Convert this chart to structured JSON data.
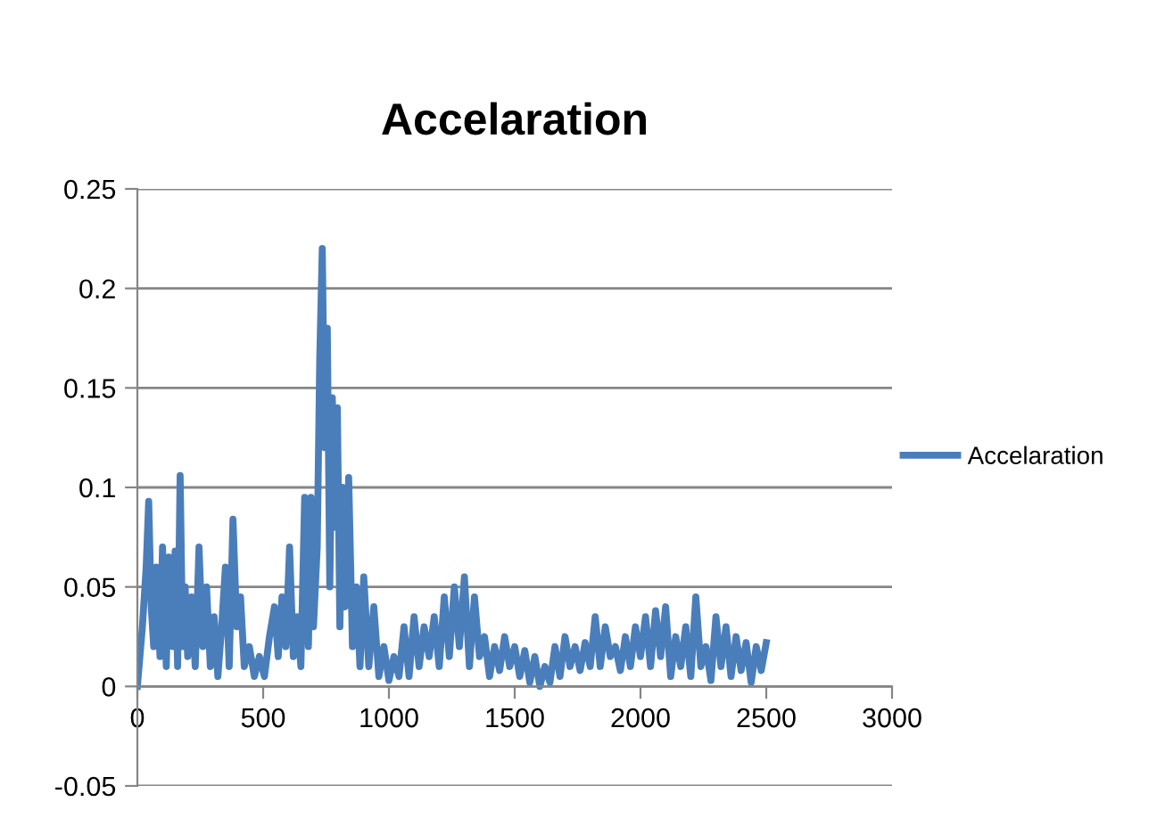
{
  "chart_data": {
    "type": "line",
    "title": "Accelaration",
    "x": [
      0,
      20,
      35,
      45,
      55,
      65,
      75,
      90,
      100,
      115,
      125,
      140,
      150,
      160,
      170,
      180,
      190,
      200,
      215,
      230,
      245,
      260,
      275,
      290,
      305,
      320,
      335,
      350,
      365,
      380,
      395,
      410,
      425,
      445,
      465,
      485,
      505,
      525,
      545,
      560,
      575,
      590,
      605,
      620,
      635,
      650,
      665,
      680,
      690,
      700,
      715,
      725,
      735,
      745,
      755,
      765,
      775,
      785,
      795,
      805,
      815,
      825,
      840,
      855,
      870,
      885,
      900,
      920,
      940,
      960,
      980,
      1000,
      1020,
      1040,
      1060,
      1080,
      1100,
      1120,
      1140,
      1160,
      1180,
      1200,
      1220,
      1240,
      1260,
      1280,
      1300,
      1320,
      1340,
      1360,
      1380,
      1400,
      1420,
      1440,
      1460,
      1480,
      1500,
      1520,
      1540,
      1560,
      1580,
      1600,
      1620,
      1640,
      1660,
      1680,
      1700,
      1720,
      1740,
      1760,
      1780,
      1800,
      1820,
      1840,
      1860,
      1880,
      1900,
      1920,
      1940,
      1960,
      1980,
      2000,
      2020,
      2040,
      2060,
      2080,
      2100,
      2120,
      2140,
      2160,
      2180,
      2200,
      2220,
      2240,
      2260,
      2280,
      2300,
      2320,
      2340,
      2360,
      2380,
      2400,
      2420,
      2440,
      2460,
      2480,
      2500
    ],
    "series": [
      {
        "name": "Accelaration",
        "color": "#4a7ebb",
        "values": [
          0,
          0.03,
          0.06,
          0.093,
          0.04,
          0.02,
          0.06,
          0.015,
          0.07,
          0.01,
          0.065,
          0.02,
          0.068,
          0.01,
          0.106,
          0.02,
          0.05,
          0.015,
          0.045,
          0.01,
          0.07,
          0.02,
          0.05,
          0.01,
          0.035,
          0.005,
          0.03,
          0.06,
          0.01,
          0.084,
          0.03,
          0.045,
          0.01,
          0.02,
          0.005,
          0.015,
          0.005,
          0.025,
          0.04,
          0.015,
          0.045,
          0.02,
          0.07,
          0.015,
          0.035,
          0.01,
          0.095,
          0.02,
          0.095,
          0.03,
          0.07,
          0.165,
          0.22,
          0.12,
          0.18,
          0.05,
          0.145,
          0.08,
          0.14,
          0.03,
          0.1,
          0.04,
          0.105,
          0.02,
          0.05,
          0.01,
          0.055,
          0.01,
          0.04,
          0.005,
          0.02,
          0.003,
          0.015,
          0.005,
          0.03,
          0.005,
          0.035,
          0.01,
          0.03,
          0.015,
          0.035,
          0.01,
          0.045,
          0.015,
          0.05,
          0.02,
          0.055,
          0.01,
          0.045,
          0.015,
          0.025,
          0.005,
          0.02,
          0.008,
          0.025,
          0.01,
          0.02,
          0.005,
          0.018,
          0.002,
          0.015,
          0.0,
          0.01,
          0.002,
          0.02,
          0.005,
          0.025,
          0.01,
          0.02,
          0.008,
          0.022,
          0.01,
          0.035,
          0.01,
          0.03,
          0.015,
          0.02,
          0.008,
          0.025,
          0.01,
          0.03,
          0.015,
          0.035,
          0.01,
          0.038,
          0.015,
          0.04,
          0.005,
          0.025,
          0.01,
          0.03,
          0.005,
          0.045,
          0.01,
          0.02,
          0.003,
          0.035,
          0.01,
          0.03,
          0.005,
          0.025,
          0.008,
          0.022,
          0.002,
          0.02,
          0.008,
          0.022
        ]
      }
    ],
    "xlim": [
      0,
      3000
    ],
    "xticks": [
      0,
      500,
      1000,
      1500,
      2000,
      2500,
      3000
    ],
    "ylim": [
      -0.05,
      0.25
    ],
    "yticks": [
      -0.05,
      0,
      0.05,
      0.1,
      0.15,
      0.2,
      0.25
    ],
    "grid": "y",
    "legend": "right",
    "marker": "none",
    "line_style": "solid"
  }
}
